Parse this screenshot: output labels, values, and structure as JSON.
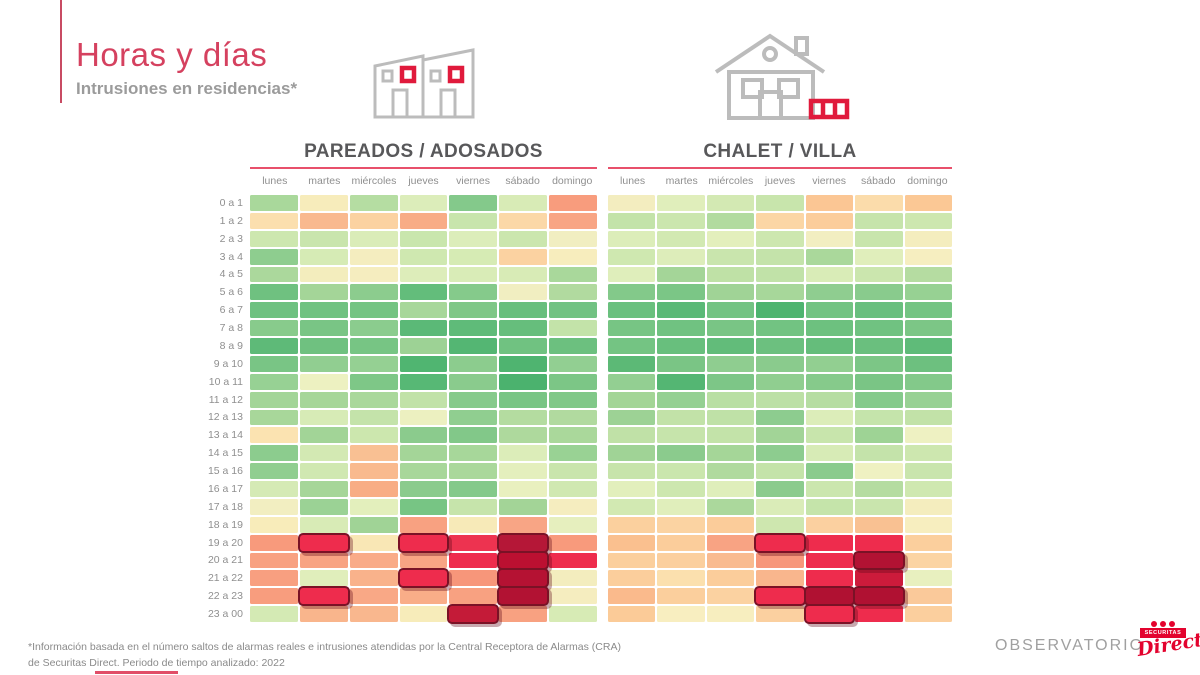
{
  "header": {
    "title": "Horas y días",
    "subtitle": "Intrusiones en residencias*"
  },
  "footer": {
    "line1": "*Información basada en el número saltos de alarmas reales e intrusiones atendidas por la Central Receptora de Alarmas (CRA)",
    "line2": "de Securitas Direct. Periodo de tiempo analizado: 2022"
  },
  "branding": {
    "observatorio": "OBSERVATORIO",
    "logo_top": "SECURITAS",
    "logo_script": "Direct"
  },
  "colors": {
    "accent_red": "#d5415f",
    "line_red": "#e8506b",
    "title_gray": "#58585a",
    "label_gray": "#8f8f8f",
    "highlight_border": "#7a1226",
    "logo_red": "#e3032e"
  },
  "chart_data": {
    "type": "heatmap",
    "x_categories": [
      "lunes",
      "martes",
      "miércoles",
      "jueves",
      "viernes",
      "sábado",
      "domingo"
    ],
    "y_categories": [
      "0 a 1",
      "1 a 2",
      "2 a 3",
      "3 a 4",
      "4 a 5",
      "5 a 6",
      "6 a 7",
      "7 a 8",
      "8 a 9",
      "9 a 10",
      "10 a 11",
      "11 a 12",
      "12 a 13",
      "13 a 14",
      "14 a 15",
      "15 a 16",
      "16 a 17",
      "17 a 18",
      "18 a 19",
      "19 a 20",
      "20 a 21",
      "21 a 22",
      "22 a 23",
      "23 a 00"
    ],
    "value_encoding": "cell color encodes relative intrusion frequency: green = low, yellow/orange = medium, red = high; darkest outlined red cells = maximum (no numeric scale shown)",
    "panels": [
      {
        "title": "PAREADOS / ADOSADOS",
        "icon": "townhouses-icon",
        "cell_colors": [
          [
            "#a9d89b",
            "#f7ecbb",
            "#b5dda2",
            "#dcedba",
            "#84c98b",
            "#d8ebb6",
            "#f89c7d"
          ],
          [
            "#fbdfae",
            "#f9b98f",
            "#fbd2a1",
            "#f8ac86",
            "#c8e5ac",
            "#fbd8a7",
            "#f8a584"
          ],
          [
            "#cde7af",
            "#c9e5ad",
            "#daecb8",
            "#c9e6ad",
            "#dcedba",
            "#cbe6ae",
            "#f1eec1"
          ],
          [
            "#8ecd8f",
            "#d6ebb5",
            "#f4edbf",
            "#cfe8b0",
            "#d6ebb4",
            "#fbd2a1",
            "#f7edbd"
          ],
          [
            "#abd89c",
            "#f3edbd",
            "#f5edbf",
            "#ddedba",
            "#d9ecb7",
            "#d8ebb6",
            "#a9d89b"
          ],
          [
            "#6fc180",
            "#a4d598",
            "#8ccc8e",
            "#63bd7b",
            "#85ca8b",
            "#f1eec1",
            "#b1da9f"
          ],
          [
            "#6ec180",
            "#70c281",
            "#74c483",
            "#a7d79a",
            "#7fc787",
            "#68bf7d",
            "#71c282"
          ],
          [
            "#88cb8c",
            "#79c585",
            "#8bcc8e",
            "#5bb977",
            "#5fbb79",
            "#66be7c",
            "#c3e3a9"
          ],
          [
            "#5eba78",
            "#6fc180",
            "#77c584",
            "#9dd295",
            "#54b673",
            "#70c281",
            "#6cc07f"
          ],
          [
            "#79c585",
            "#91ce91",
            "#95d093",
            "#50b571",
            "#8ccc8e",
            "#4fb470",
            "#92cf92"
          ],
          [
            "#97d194",
            "#edf1c1",
            "#7ec787",
            "#57b875",
            "#8acb8d",
            "#4bb26e",
            "#7cc686"
          ],
          [
            "#a3d598",
            "#a6d699",
            "#aad89b",
            "#c1e2a8",
            "#86ca8b",
            "#79c585",
            "#80c888"
          ],
          [
            "#a8d79a",
            "#d7ebb6",
            "#c4e3aa",
            "#ecf0c0",
            "#90ce90",
            "#b4dca0",
            "#b1da9f"
          ],
          [
            "#fbe3b1",
            "#a2d497",
            "#cce7ae",
            "#8bcb8d",
            "#82c889",
            "#aed99d",
            "#aad89b"
          ],
          [
            "#8ccc8e",
            "#d3e9b3",
            "#f9c093",
            "#a4d598",
            "#a7d79a",
            "#dcedb9",
            "#99d294"
          ],
          [
            "#90ce90",
            "#d0e8b1",
            "#f9ba8e",
            "#a8d79a",
            "#aad89b",
            "#e4efbd",
            "#c9e5ac"
          ],
          [
            "#d5eab5",
            "#a6d699",
            "#f8ad85",
            "#8bcb8d",
            "#84c98a",
            "#e9f0bf",
            "#d0e8b1"
          ],
          [
            "#f2eec1",
            "#9bd295",
            "#e3efbc",
            "#77c584",
            "#c6e4ab",
            "#a3d497",
            "#f5edbf"
          ],
          [
            "#f8ecba",
            "#d8ebb6",
            "#a0d396",
            "#f8a181",
            "#f7eab8",
            "#f8a585",
            "#e6efbe"
          ],
          [
            "#f89a7c",
            "#ee2c4d",
            "#f9e7b5",
            "#ee2c4d",
            "#ed3350",
            "#b51737",
            "#f89a7c"
          ],
          [
            "#f8a181",
            "#f8a383",
            "#f9ab88",
            "#f8a484",
            "#ee2c4d",
            "#bb1031",
            "#ee2c4d"
          ],
          [
            "#f89f80",
            "#e0eebb",
            "#f9b28b",
            "#ee2c4d",
            "#f7967a",
            "#b51233",
            "#f3edbe"
          ],
          [
            "#f89d7e",
            "#ee2c4d",
            "#f9a886",
            "#f9ad88",
            "#f8a181",
            "#b21233",
            "#f5edbf"
          ],
          [
            "#d4eab4",
            "#f9b58c",
            "#f9b78e",
            "#f7ecba",
            "#c41b38",
            "#f8a181",
            "#d7ebb5"
          ]
        ],
        "highlighted_cells": [
          [
            19,
            1
          ],
          [
            19,
            3
          ],
          [
            19,
            5
          ],
          [
            20,
            5
          ],
          [
            21,
            3
          ],
          [
            21,
            5
          ],
          [
            22,
            1
          ],
          [
            22,
            5
          ],
          [
            23,
            4
          ]
        ]
      },
      {
        "title": "CHALET / VILLA",
        "icon": "chalet-icon",
        "cell_colors": [
          [
            "#f3edbf",
            "#e0eebb",
            "#d3e9b3",
            "#c8e5ac",
            "#fbc694",
            "#fbdcab",
            "#fbc895"
          ],
          [
            "#c3e3a9",
            "#cbe6ae",
            "#b2db9f",
            "#fbd6a5",
            "#fbcd9b",
            "#c6e4ab",
            "#cde7af"
          ],
          [
            "#dcedb9",
            "#d2e9b2",
            "#e3efbc",
            "#cde7af",
            "#f2eec1",
            "#c8e5ac",
            "#f4edbe"
          ],
          [
            "#cfe8b0",
            "#ddedba",
            "#c9e5ad",
            "#c4e3aa",
            "#aad89b",
            "#e0eebb",
            "#f6eec0"
          ],
          [
            "#dfeebb",
            "#a4d598",
            "#bfe1a6",
            "#c1e2a8",
            "#d9ecb7",
            "#cbe6ae",
            "#b5dca1"
          ],
          [
            "#83c98a",
            "#7bc686",
            "#a0d396",
            "#a7d79a",
            "#8fcd90",
            "#89cb8d",
            "#97d193"
          ],
          [
            "#6ac07e",
            "#5bb977",
            "#73c383",
            "#4eb46f",
            "#72c382",
            "#69bf7e",
            "#74c483"
          ],
          [
            "#77c584",
            "#70c281",
            "#79c585",
            "#72c382",
            "#6dc17f",
            "#70c281",
            "#7cc686"
          ],
          [
            "#74c483",
            "#68bf7d",
            "#62bc7a",
            "#6cc07f",
            "#65bd7b",
            "#6abf7e",
            "#5fbb79"
          ],
          [
            "#5cb976",
            "#7ac585",
            "#8fcd90",
            "#8acb8d",
            "#92cf91",
            "#7cc686",
            "#6dc07f"
          ],
          [
            "#93cf92",
            "#54b673",
            "#7dc687",
            "#90ce90",
            "#86ca8b",
            "#7ac585",
            "#83c98a"
          ],
          [
            "#a3d597",
            "#95d093",
            "#b9dfa3",
            "#bce0a5",
            "#b6dda2",
            "#85ca8b",
            "#98d194"
          ],
          [
            "#9dd295",
            "#c2e2a8",
            "#bfe1a7",
            "#8dcc8f",
            "#dcedb9",
            "#c5e4ab",
            "#c2e2a8"
          ],
          [
            "#c0e1a7",
            "#c6e4ab",
            "#c3e3a9",
            "#a2d497",
            "#c8e5ac",
            "#9ed395",
            "#eef1c2"
          ],
          [
            "#a0d396",
            "#8bcb8d",
            "#a5d698",
            "#8dcc8f",
            "#d7ebb6",
            "#c4e3aa",
            "#cde7af"
          ],
          [
            "#c7e4ab",
            "#cae6ad",
            "#b0da9e",
            "#c4e3a9",
            "#8acb8d",
            "#eff1c2",
            "#c9e5ad"
          ],
          [
            "#e2efbc",
            "#cde7af",
            "#dfeebb",
            "#8bcb8d",
            "#cbe6ae",
            "#b5dca1",
            "#cfe8b0"
          ],
          [
            "#d2e9b2",
            "#e0eebb",
            "#abd89c",
            "#daecb8",
            "#c5e4aa",
            "#c9e5ad",
            "#f4edbe"
          ],
          [
            "#fbd09e",
            "#fbd3a2",
            "#fbcc9a",
            "#cee7af",
            "#fbd0a0",
            "#f9c192",
            "#f7eebf"
          ],
          [
            "#fac08f",
            "#fbcd9b",
            "#f8a383",
            "#ee2c4d",
            "#ee2c4d",
            "#ee2c4d",
            "#fbcf9d"
          ],
          [
            "#fbcf9d",
            "#fbcf9e",
            "#f9bb90",
            "#f7977b",
            "#ee2c4d",
            "#b21233",
            "#fbd4a3"
          ],
          [
            "#fbce9c",
            "#fbe0ae",
            "#fbcd9b",
            "#f9b68d",
            "#ee2c4d",
            "#cc1b3b",
            "#e8f0bf"
          ],
          [
            "#faba8c",
            "#fbcf9d",
            "#fbd2a1",
            "#ee2c4d",
            "#b01132",
            "#b01132",
            "#fac99a"
          ],
          [
            "#fbcb98",
            "#f8eec0",
            "#f7eebf",
            "#fbd0a0",
            "#ee2c4d",
            "#ee2c4d",
            "#fbcf9e"
          ]
        ],
        "highlighted_cells": [
          [
            19,
            3
          ],
          [
            20,
            5
          ],
          [
            22,
            3
          ],
          [
            22,
            4
          ],
          [
            22,
            5
          ],
          [
            23,
            4
          ]
        ]
      }
    ]
  }
}
